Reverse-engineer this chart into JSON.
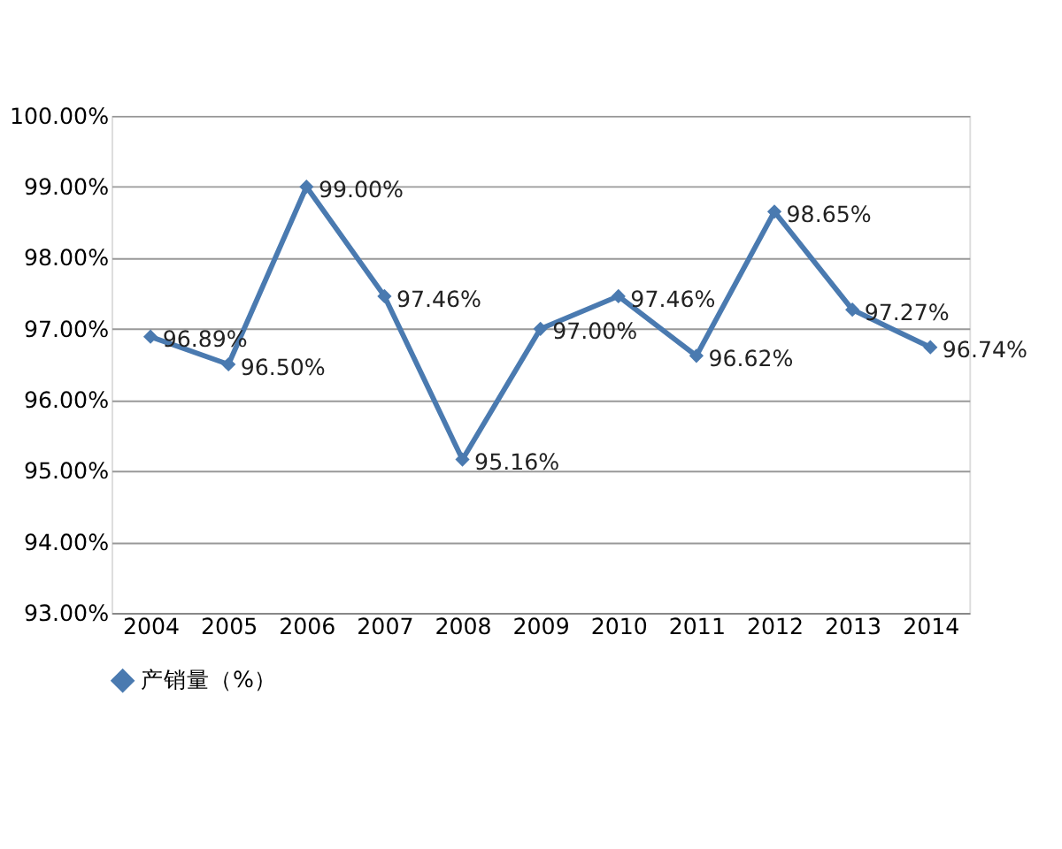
{
  "chart_data": {
    "type": "line",
    "categories": [
      "2004",
      "2005",
      "2006",
      "2007",
      "2008",
      "2009",
      "2010",
      "2011",
      "2012",
      "2013",
      "2014"
    ],
    "series": [
      {
        "name": "产销量（%）",
        "color": "#4a7ab0",
        "values": [
          96.89,
          96.5,
          99.0,
          97.46,
          95.16,
          97.0,
          97.46,
          96.62,
          98.65,
          97.27,
          96.74
        ],
        "value_labels": [
          "96.89%",
          "96.50%",
          "99.00%",
          "97.46%",
          "95.16%",
          "97.00%",
          "97.46%",
          "96.62%",
          "98.65%",
          "97.27%",
          "96.74%"
        ]
      }
    ],
    "ylim": [
      93,
      100
    ],
    "yticks": [
      {
        "value": 93,
        "label": "93.00%"
      },
      {
        "value": 94,
        "label": "94.00%"
      },
      {
        "value": 95,
        "label": "95.00%"
      },
      {
        "value": 96,
        "label": "96.00%"
      },
      {
        "value": 97,
        "label": "97.00%"
      },
      {
        "value": 98,
        "label": "98.00%"
      },
      {
        "value": 99,
        "label": "99.00%"
      },
      {
        "value": 100,
        "label": "100.00%"
      }
    ],
    "grid": "y",
    "legend": "bottom",
    "marker": "diamond",
    "line_style": "solid"
  }
}
